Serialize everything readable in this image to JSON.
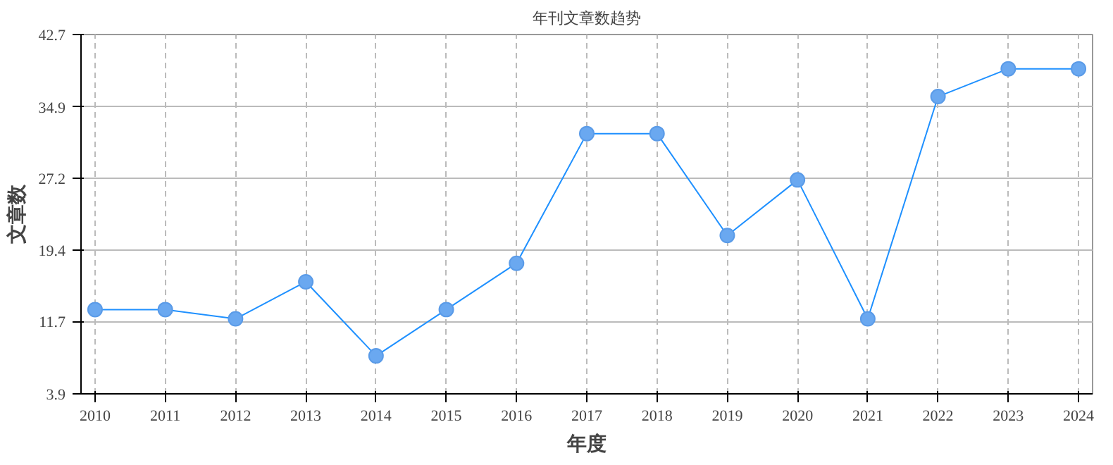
{
  "chart_data": {
    "type": "line",
    "title": "年刊文章数趋势",
    "xlabel": "年度",
    "ylabel": "文章数",
    "x": [
      2010,
      2011,
      2012,
      2013,
      2014,
      2015,
      2016,
      2017,
      2018,
      2019,
      2020,
      2021,
      2022,
      2023,
      2024
    ],
    "series": [
      {
        "color": "#1e90ff",
        "values": [
          13,
          13,
          12,
          16,
          8,
          13,
          18,
          32,
          32,
          21,
          27,
          12,
          36,
          39,
          39
        ]
      }
    ],
    "xlim": [
      2009.8,
      2024.2
    ],
    "xticks": [
      2010,
      2011,
      2012,
      2013,
      2014,
      2015,
      2016,
      2017,
      2018,
      2019,
      2020,
      2021,
      2022,
      2023,
      2024
    ],
    "ylim": [
      3.9,
      42.7
    ],
    "yticks": [
      3.9,
      11.7,
      19.4,
      27.2,
      34.9,
      42.7
    ],
    "grid": true,
    "marker": "circle",
    "line_style": "solid"
  }
}
